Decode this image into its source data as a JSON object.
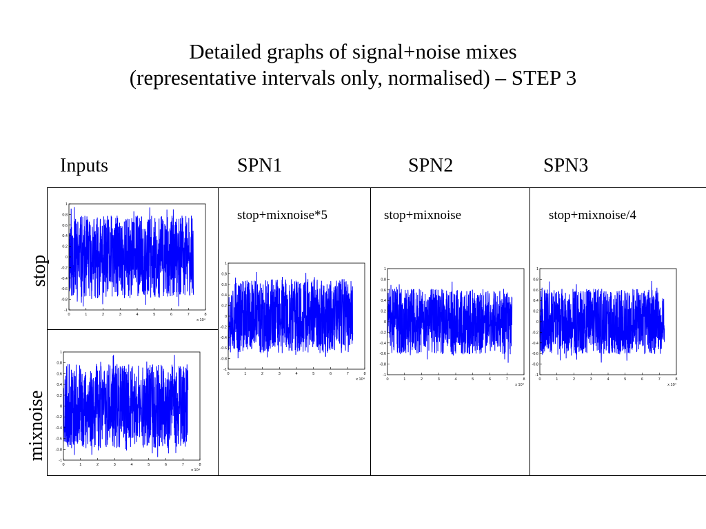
{
  "title": {
    "line1": "Detailed graphs of signal+noise mixes",
    "line2": "(representative intervals only, normalised) – STEP 3"
  },
  "columns": [
    "Inputs",
    "SPN1",
    "SPN2",
    "SPN3"
  ],
  "rows": [
    "stop",
    "mixnoise"
  ],
  "captions": {
    "spn1": "stop+mixnoise*5",
    "spn2": "stop+mixnoise",
    "spn3": "stop+mixnoise/4"
  },
  "colors": {
    "signal": "#0000ff",
    "axes": "#000000"
  },
  "chart_data": [
    {
      "type": "line",
      "panel": "Inputs / stop",
      "seed": 11,
      "x_scale_label": "x 10⁴",
      "xlim": [
        0,
        8
      ],
      "ylim": [
        -1,
        1
      ],
      "xticks": [
        "0",
        "1",
        "2",
        "3",
        "4",
        "5",
        "6",
        "7",
        "8"
      ],
      "yticks": [
        "-1",
        "-0.8",
        "-0.6",
        "-0.4",
        "-0.2",
        "0",
        "0.2",
        "0.4",
        "0.6",
        "0.8",
        "1"
      ],
      "signal_x_range": [
        0,
        7.3
      ],
      "approx_amplitude": 0.78,
      "series_color": "#0000ff"
    },
    {
      "type": "line",
      "panel": "Inputs / mixnoise",
      "seed": 23,
      "x_scale_label": "x 10⁴",
      "xlim": [
        0,
        8
      ],
      "ylim": [
        -1,
        1
      ],
      "xticks": [
        "0",
        "1",
        "2",
        "3",
        "4",
        "5",
        "6",
        "7",
        "8"
      ],
      "yticks": [
        "-1",
        "-0.8",
        "-0.6",
        "-0.4",
        "-0.2",
        "0",
        "0.2",
        "0.4",
        "0.6",
        "0.8",
        "1"
      ],
      "signal_x_range": [
        0,
        7.3
      ],
      "approx_amplitude": 0.78,
      "series_color": "#0000ff"
    },
    {
      "type": "line",
      "panel": "SPN1",
      "seed": 37,
      "x_scale_label": "x 10⁴",
      "xlim": [
        0,
        8
      ],
      "ylim": [
        -1,
        1
      ],
      "xticks": [
        "0",
        "1",
        "2",
        "3",
        "4",
        "5",
        "6",
        "7",
        "8"
      ],
      "yticks": [
        "-1",
        "-0.8",
        "-0.6",
        "-0.4",
        "-0.2",
        "0",
        "0.2",
        "0.4",
        "0.6",
        "0.8",
        "1"
      ],
      "signal_x_range": [
        0,
        7.3
      ],
      "approx_amplitude": 0.7,
      "series_color": "#0000ff"
    },
    {
      "type": "line",
      "panel": "SPN2",
      "seed": 51,
      "x_scale_label": "x 10⁴",
      "xlim": [
        0,
        8
      ],
      "ylim": [
        -1,
        1
      ],
      "xticks": [
        "0",
        "1",
        "2",
        "3",
        "4",
        "5",
        "6",
        "7",
        "8"
      ],
      "yticks": [
        "-1",
        "-0.8",
        "-0.6",
        "-0.4",
        "-0.2",
        "0",
        "0.2",
        "0.4",
        "0.6",
        "0.8",
        "1"
      ],
      "signal_x_range": [
        0,
        7.3
      ],
      "approx_amplitude": 0.62,
      "series_color": "#0000ff"
    },
    {
      "type": "line",
      "panel": "SPN3",
      "seed": 67,
      "x_scale_label": "x 10⁴",
      "xlim": [
        0,
        8
      ],
      "ylim": [
        -1,
        1
      ],
      "xticks": [
        "0",
        "1",
        "2",
        "3",
        "4",
        "5",
        "6",
        "7",
        "8"
      ],
      "yticks": [
        "-1",
        "-0.8",
        "-0.6",
        "-0.4",
        "-0.2",
        "0",
        "0.2",
        "0.4",
        "0.6",
        "0.8",
        "1"
      ],
      "signal_x_range": [
        0,
        7.3
      ],
      "approx_amplitude": 0.62,
      "series_color": "#0000ff"
    }
  ]
}
